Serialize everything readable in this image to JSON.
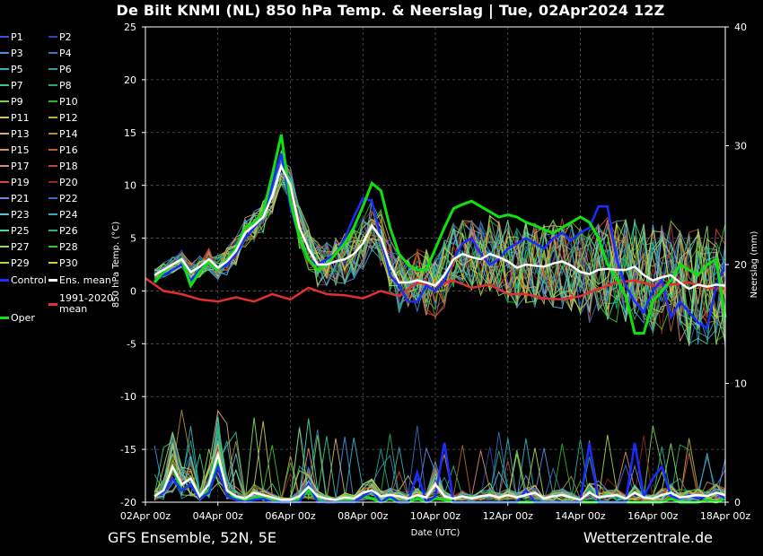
{
  "title": "De Bilt KNMI  (NL)  850 hPa Temp. & Neerslag | Tue, 02Apr2024 12Z",
  "footer_left": "GFS Ensemble, 52N, 5E",
  "footer_right": "Wetterzentrale.de",
  "chart_data": {
    "type": "line",
    "xlabel": "Date (UTC)",
    "ylabel": "850 hPa Temp. (°C)",
    "y2label": "Neerslag (mm)",
    "ylim": [
      -20,
      25
    ],
    "y2lim": [
      0,
      40
    ],
    "yticks": [
      25,
      20,
      15,
      10,
      5,
      0,
      -5,
      -10,
      -15,
      -20
    ],
    "y2ticks": [
      40,
      30,
      20,
      10,
      0
    ],
    "xlim_hours": [
      0,
      384
    ],
    "xticks": [
      "02Apr 00z",
      "04Apr 00z",
      "06Apr 00z",
      "08Apr 00z",
      "10Apr 00z",
      "12Apr 00z",
      "14Apr 00z",
      "16Apr 00z",
      "18Apr 00z"
    ],
    "grid": true,
    "legend_position": "left",
    "legend": [
      {
        "label": "P1",
        "color": "#2d57d8"
      },
      {
        "label": "P2",
        "color": "#2b45a8"
      },
      {
        "label": "P3",
        "color": "#4a8fe0"
      },
      {
        "label": "P4",
        "color": "#3a7bb5"
      },
      {
        "label": "P5",
        "color": "#38b2c8"
      },
      {
        "label": "P6",
        "color": "#2f9c9a"
      },
      {
        "label": "P7",
        "color": "#36c98a"
      },
      {
        "label": "P8",
        "color": "#2aa86a"
      },
      {
        "label": "P9",
        "color": "#7cd048"
      },
      {
        "label": "P10",
        "color": "#25b525"
      },
      {
        "label": "P11",
        "color": "#d6c45a"
      },
      {
        "label": "P12",
        "color": "#c8a83a"
      },
      {
        "label": "P13",
        "color": "#d4b070"
      },
      {
        "label": "P14",
        "color": "#b48a3a"
      },
      {
        "label": "P15",
        "color": "#d49058"
      },
      {
        "label": "P16",
        "color": "#b8622a"
      },
      {
        "label": "P17",
        "color": "#d88a7a"
      },
      {
        "label": "P18",
        "color": "#b04a3a"
      },
      {
        "label": "P19",
        "color": "#d04a3a"
      },
      {
        "label": "P20",
        "color": "#902a1a"
      },
      {
        "label": "P21",
        "color": "#6a8ae0"
      },
      {
        "label": "P22",
        "color": "#3a6ac0"
      },
      {
        "label": "P23",
        "color": "#58c0d8"
      },
      {
        "label": "P24",
        "color": "#3aa8b8"
      },
      {
        "label": "P25",
        "color": "#48d8a8"
      },
      {
        "label": "P26",
        "color": "#28b088"
      },
      {
        "label": "P27",
        "color": "#88e068"
      },
      {
        "label": "P28",
        "color": "#38c038"
      },
      {
        "label": "P29",
        "color": "#a8d848"
      },
      {
        "label": "P30",
        "color": "#d8c848"
      }
    ],
    "special_legend": {
      "control": {
        "label": "Control",
        "color": "#1a2cff"
      },
      "ens_mean": {
        "label": "Ens. mean",
        "color": "#ffffff"
      },
      "clim_mean": {
        "label": "1991-2020\nmean",
        "color": "#e03030"
      },
      "oper": {
        "label": "Oper",
        "color": "#10e010"
      }
    },
    "series": {
      "ens_mean": {
        "x_hours": [
          6,
          12,
          18,
          24,
          30,
          36,
          42,
          48,
          54,
          60,
          66,
          72,
          78,
          84,
          90,
          96,
          102,
          108,
          114,
          120,
          126,
          132,
          138,
          144,
          150,
          156,
          162,
          168,
          174,
          180,
          186,
          192,
          198,
          204,
          210,
          216,
          222,
          228,
          234,
          240,
          246,
          252,
          258,
          264,
          270,
          276,
          282,
          288,
          294,
          300,
          306,
          312,
          318,
          324,
          330,
          336,
          342,
          348,
          354,
          360,
          366,
          372,
          378,
          384
        ],
        "values": [
          1.5,
          2.0,
          2.5,
          3.0,
          1.8,
          2.3,
          3.0,
          2.2,
          2.8,
          3.8,
          5.5,
          6.2,
          7.0,
          9.0,
          11.8,
          10.0,
          6.0,
          4.0,
          2.5,
          2.5,
          2.8,
          3.0,
          3.5,
          4.5,
          6.2,
          5.0,
          2.5,
          0.8,
          0.8,
          1.0,
          0.8,
          0.5,
          1.5,
          3.0,
          3.5,
          3.2,
          3.0,
          3.5,
          3.2,
          2.8,
          2.2,
          2.5,
          2.4,
          2.3,
          2.6,
          2.8,
          2.4,
          1.8,
          1.6,
          2.0,
          2.1,
          2.0,
          2.0,
          2.3,
          1.5,
          1.0,
          1.3,
          1.5,
          0.8,
          0.2,
          0.6,
          0.4,
          0.6,
          0.5
        ]
      },
      "oper": {
        "x_hours": [
          6,
          12,
          18,
          24,
          30,
          36,
          42,
          48,
          54,
          60,
          66,
          72,
          78,
          84,
          90,
          96,
          102,
          108,
          114,
          120,
          126,
          132,
          138,
          144,
          150,
          156,
          162,
          168,
          174,
          180,
          186,
          192,
          198,
          204,
          210,
          216,
          222,
          228,
          234,
          240,
          246,
          252,
          258,
          264,
          270,
          276,
          282,
          288,
          294,
          300,
          306,
          312,
          318,
          324,
          330,
          336,
          342,
          348,
          354,
          360,
          366,
          372,
          378,
          384
        ],
        "values": [
          0.8,
          1.8,
          2.5,
          3.0,
          0.5,
          1.8,
          2.8,
          2.0,
          3.0,
          4.0,
          6.0,
          6.5,
          7.5,
          11.0,
          14.8,
          8.5,
          5.0,
          3.0,
          2.0,
          2.5,
          3.5,
          4.5,
          6.0,
          8.0,
          10.2,
          9.5,
          6.0,
          3.5,
          2.5,
          2.0,
          2.0,
          4.0,
          6.0,
          7.8,
          8.2,
          8.5,
          8.0,
          7.5,
          7.0,
          7.2,
          7.0,
          6.5,
          6.2,
          5.8,
          5.5,
          6.0,
          6.5,
          7.0,
          6.5,
          5.0,
          2.5,
          1.2,
          -0.5,
          -4.0,
          -4.0,
          -1.0,
          0.0,
          1.0,
          2.5,
          2.0,
          1.5,
          2.5,
          3.0,
          -2.5
        ]
      },
      "control": {
        "x_hours": [
          6,
          12,
          18,
          24,
          30,
          36,
          42,
          48,
          54,
          60,
          66,
          72,
          78,
          84,
          90,
          96,
          102,
          108,
          114,
          120,
          126,
          132,
          138,
          144,
          150,
          156,
          162,
          168,
          174,
          180,
          186,
          192,
          198,
          204,
          210,
          216,
          222,
          228,
          234,
          240,
          246,
          252,
          258,
          264,
          270,
          276,
          282,
          288,
          294,
          300,
          306,
          312,
          318,
          324,
          330,
          336,
          342,
          348,
          354,
          360,
          366,
          372,
          378,
          384
        ],
        "values": [
          1.0,
          1.5,
          2.0,
          2.5,
          1.0,
          2.0,
          3.0,
          2.0,
          2.5,
          3.5,
          5.0,
          6.0,
          7.0,
          10.0,
          13.0,
          8.0,
          5.0,
          3.0,
          2.5,
          3.0,
          3.5,
          5.0,
          7.0,
          8.8,
          8.5,
          5.0,
          1.5,
          0.5,
          -1.0,
          -1.0,
          0.5,
          0.0,
          1.0,
          3.0,
          4.5,
          5.0,
          3.5,
          2.5,
          3.0,
          4.0,
          4.5,
          5.0,
          4.5,
          4.0,
          5.0,
          5.5,
          4.8,
          5.5,
          6.0,
          8.0,
          8.0,
          3.0,
          0.5,
          -1.0,
          -2.0,
          0.0,
          1.0,
          -2.5,
          -1.0,
          -2.0,
          -3.0,
          -3.5,
          0.5,
          2.5
        ]
      },
      "clim_mean": {
        "x_hours": [
          0,
          12,
          24,
          36,
          48,
          60,
          72,
          84,
          96,
          108,
          120,
          132,
          144,
          156,
          168,
          180,
          192,
          204,
          216,
          228,
          240,
          252,
          264,
          276,
          288,
          300,
          312,
          324,
          336,
          348,
          360,
          372,
          384
        ],
        "values": [
          1.2,
          0.0,
          -0.3,
          -0.8,
          -1.0,
          -0.6,
          -1.0,
          -0.3,
          -0.8,
          0.3,
          -0.3,
          -0.4,
          -0.7,
          0.0,
          -0.5,
          0.8,
          0.5,
          1.0,
          0.3,
          0.6,
          -0.3,
          -0.3,
          -0.7,
          -0.8,
          -0.5,
          0.2,
          0.8,
          1.0,
          0.5,
          0.6,
          0.8,
          0.3,
          0.2
        ]
      },
      "precip_mean_mm": {
        "x_hours": [
          6,
          12,
          18,
          24,
          30,
          36,
          42,
          48,
          54,
          60,
          66,
          72,
          78,
          84,
          90,
          96,
          102,
          108,
          114,
          120,
          126,
          132,
          138,
          144,
          150,
          156,
          162,
          168,
          174,
          180,
          186,
          192,
          198,
          204,
          210,
          216,
          222,
          228,
          234,
          240,
          246,
          252,
          258,
          264,
          270,
          276,
          282,
          288,
          294,
          300,
          306,
          312,
          318,
          324,
          330,
          336,
          342,
          348,
          354,
          360,
          366,
          372,
          378,
          384
        ],
        "values": [
          0.5,
          1.0,
          3.0,
          1.5,
          2.0,
          0.5,
          1.5,
          4.0,
          1.0,
          0.5,
          0.3,
          0.8,
          0.6,
          0.4,
          0.2,
          0.2,
          0.5,
          1.3,
          0.5,
          0.3,
          0.2,
          0.4,
          0.3,
          0.8,
          1.0,
          0.5,
          0.6,
          0.5,
          0.3,
          0.6,
          0.4,
          1.5,
          0.5,
          0.3,
          0.5,
          0.3,
          0.5,
          0.6,
          0.4,
          0.6,
          0.4,
          0.6,
          0.8,
          0.3,
          0.5,
          0.6,
          0.4,
          0.2,
          0.8,
          0.4,
          0.5,
          0.6,
          0.3,
          0.8,
          0.4,
          0.3,
          0.6,
          0.8,
          0.4,
          0.5,
          0.6,
          0.5,
          0.8,
          0.6
        ]
      },
      "precip_control_mm": {
        "x_hours": [
          6,
          12,
          18,
          24,
          30,
          36,
          42,
          48,
          54,
          60,
          66,
          72,
          78,
          84,
          90,
          96,
          102,
          108,
          114,
          120,
          126,
          132,
          138,
          144,
          150,
          156,
          162,
          168,
          174,
          180,
          186,
          192,
          198,
          204,
          210,
          216,
          222,
          228,
          234,
          240,
          246,
          252,
          258,
          264,
          270,
          276,
          282,
          288,
          294,
          300,
          306,
          312,
          318,
          324,
          330,
          336,
          342,
          348,
          354,
          360,
          366,
          372,
          378,
          384
        ],
        "values": [
          0.5,
          0.8,
          2.0,
          1.0,
          1.5,
          0.3,
          0.8,
          3.0,
          0.5,
          0.2,
          0.0,
          0.2,
          0.3,
          0.0,
          0.0,
          0.0,
          0.0,
          1.5,
          0.0,
          0.0,
          0.0,
          0.0,
          0.0,
          0.5,
          1.0,
          0.0,
          0.5,
          0.0,
          0.0,
          2.5,
          0.0,
          0.5,
          5.0,
          0.0,
          0.0,
          0.0,
          0.0,
          0.0,
          0.0,
          0.0,
          0.0,
          1.0,
          0.0,
          0.0,
          0.0,
          0.0,
          0.0,
          0.0,
          5.0,
          0.0,
          0.0,
          0.0,
          0.0,
          5.0,
          0.5,
          2.0,
          3.0,
          0.5,
          0.3,
          0.6,
          0.3,
          0.5,
          0.8,
          0.3
        ]
      },
      "precip_oper_mm": {
        "x_hours": [
          6,
          12,
          18,
          24,
          30,
          36,
          42,
          48,
          54,
          60,
          66,
          72,
          78,
          84,
          90,
          96,
          102,
          108,
          114,
          120,
          126,
          132,
          138,
          144,
          150,
          156,
          162,
          168,
          174,
          180,
          186,
          192,
          198,
          204,
          210,
          216,
          222,
          228,
          234,
          240,
          246,
          252,
          258,
          264,
          270,
          276,
          282,
          288,
          294,
          300,
          306,
          312,
          318,
          324,
          330,
          336,
          342,
          348,
          354,
          360,
          366,
          372,
          378,
          384
        ],
        "values": [
          0.5,
          1.0,
          3.0,
          1.0,
          1.5,
          0.3,
          1.0,
          3.5,
          1.0,
          0.3,
          0.2,
          0.3,
          0.5,
          0.3,
          0.0,
          0.0,
          0.3,
          1.0,
          0.2,
          0.0,
          0.0,
          0.3,
          0.0,
          0.5,
          0.3,
          0.0,
          0.3,
          0.0,
          0.0,
          0.3,
          0.0,
          0.3,
          0.2,
          0.0,
          0.0,
          0.0,
          0.0,
          0.0,
          0.0,
          0.0,
          0.0,
          0.0,
          0.0,
          0.0,
          0.0,
          0.0,
          0.0,
          0.0,
          0.0,
          0.0,
          0.0,
          0.0,
          0.0,
          0.0,
          0.0,
          0.0,
          0.0,
          0.3,
          0.0,
          0.0,
          0.0,
          0.2,
          0.0,
          0.3
        ]
      }
    }
  }
}
